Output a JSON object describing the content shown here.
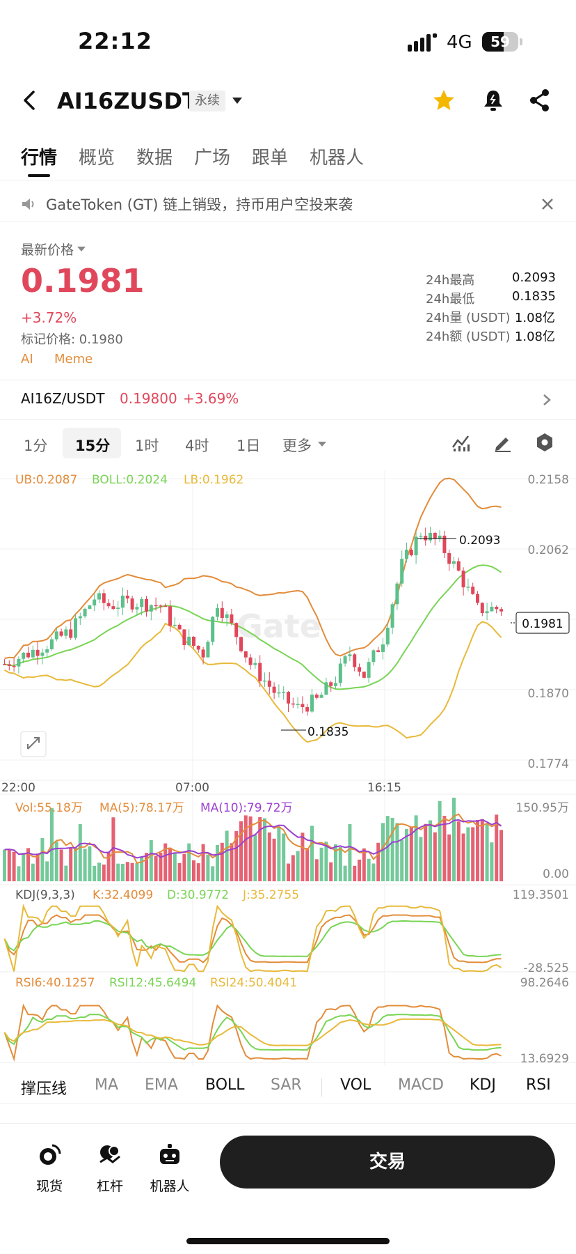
{
  "status_bar": {
    "time": "22:12",
    "network": "4G",
    "battery": "59",
    "battery_level": 0.59
  },
  "header": {
    "title": "AI16ZUSDT",
    "badge": "永续",
    "icons": [
      "back-icon",
      "star-icon",
      "bell-icon",
      "share-icon"
    ]
  },
  "tabs": [
    "行情",
    "概览",
    "数据",
    "广场",
    "跟单",
    "机器人"
  ],
  "notice": {
    "text": "GateToken (GT) 链上销毁，持币用户空投来袭"
  },
  "price": {
    "label": "最新价格",
    "last": "0.1981",
    "change": "+3.72%",
    "mark": "标记价格: 0.1980",
    "tags": [
      "AI",
      "Meme"
    ]
  },
  "stats": [
    {
      "label": "24h最高",
      "value": "0.2093"
    },
    {
      "label": "24h最低",
      "value": "0.1835"
    },
    {
      "label": "24h量 (USDT)",
      "value": "1.08亿"
    },
    {
      "label": "24h额 (USDT)",
      "value": "1.08亿"
    }
  ],
  "spot": {
    "name": "AI16Z/USDT",
    "price": "0.19800",
    "change": "+3.69%"
  },
  "timeframes": {
    "items": [
      "1分",
      "15分",
      "1时",
      "4时",
      "1日"
    ],
    "more": "更多",
    "active": "15分"
  },
  "chart_data": [
    {
      "type": "candlestick",
      "legend": {
        "ub": "UB:0.2087",
        "boll": "BOLL:0.2024",
        "lb": "LB:0.1962"
      },
      "y_ticks": [
        "0.2158",
        "0.2062",
        "0.1870",
        "0.1774"
      ],
      "ylim": [
        0.1774,
        0.2158
      ],
      "x_ticks": [
        "22:00",
        "07:00",
        "16:15"
      ],
      "last_price_tag": "0.1981",
      "high_marker": "0.2093",
      "low_marker": "0.1835",
      "watermark": "Gate"
    },
    {
      "type": "bar",
      "legend": {
        "vol": "Vol:55.18万",
        "ma5": "MA(5):78.17万",
        "ma10": "MA(10):79.72万"
      },
      "y_ticks": [
        "150.95万",
        "0.00"
      ]
    },
    {
      "type": "line",
      "legend": {
        "name": "KDJ(9,3,3)",
        "k": "K:32.4099",
        "d": "D:30.9772",
        "j": "J:35.2755"
      },
      "y_ticks": [
        "119.3501",
        "-28.525"
      ]
    },
    {
      "type": "line",
      "legend": {
        "r6": "RSI6:40.1257",
        "r12": "RSI12:45.6494",
        "r24": "RSI24:50.4041"
      },
      "y_ticks": [
        "98.2646",
        "13.6929"
      ]
    }
  ],
  "indicator_tabs": [
    {
      "label": "撑压线",
      "on": true
    },
    {
      "label": "MA",
      "on": false
    },
    {
      "label": "EMA",
      "on": false
    },
    {
      "label": "BOLL",
      "on": true
    },
    {
      "label": "SAR",
      "on": false
    },
    {
      "label": "VOL",
      "on": true
    },
    {
      "label": "MACD",
      "on": false
    },
    {
      "label": "KDJ",
      "on": true
    },
    {
      "label": "RSI",
      "on": true
    }
  ],
  "bottom_nav": {
    "spot": "现货",
    "margin": "杠杆",
    "bot": "机器人",
    "trade": "交易"
  },
  "colors": {
    "up": "#e0475a",
    "down": "#5cc08a",
    "ub": "#e38c3a",
    "boll": "#79d455",
    "lb": "#e8b93a",
    "ma10": "#9b3fd0"
  }
}
